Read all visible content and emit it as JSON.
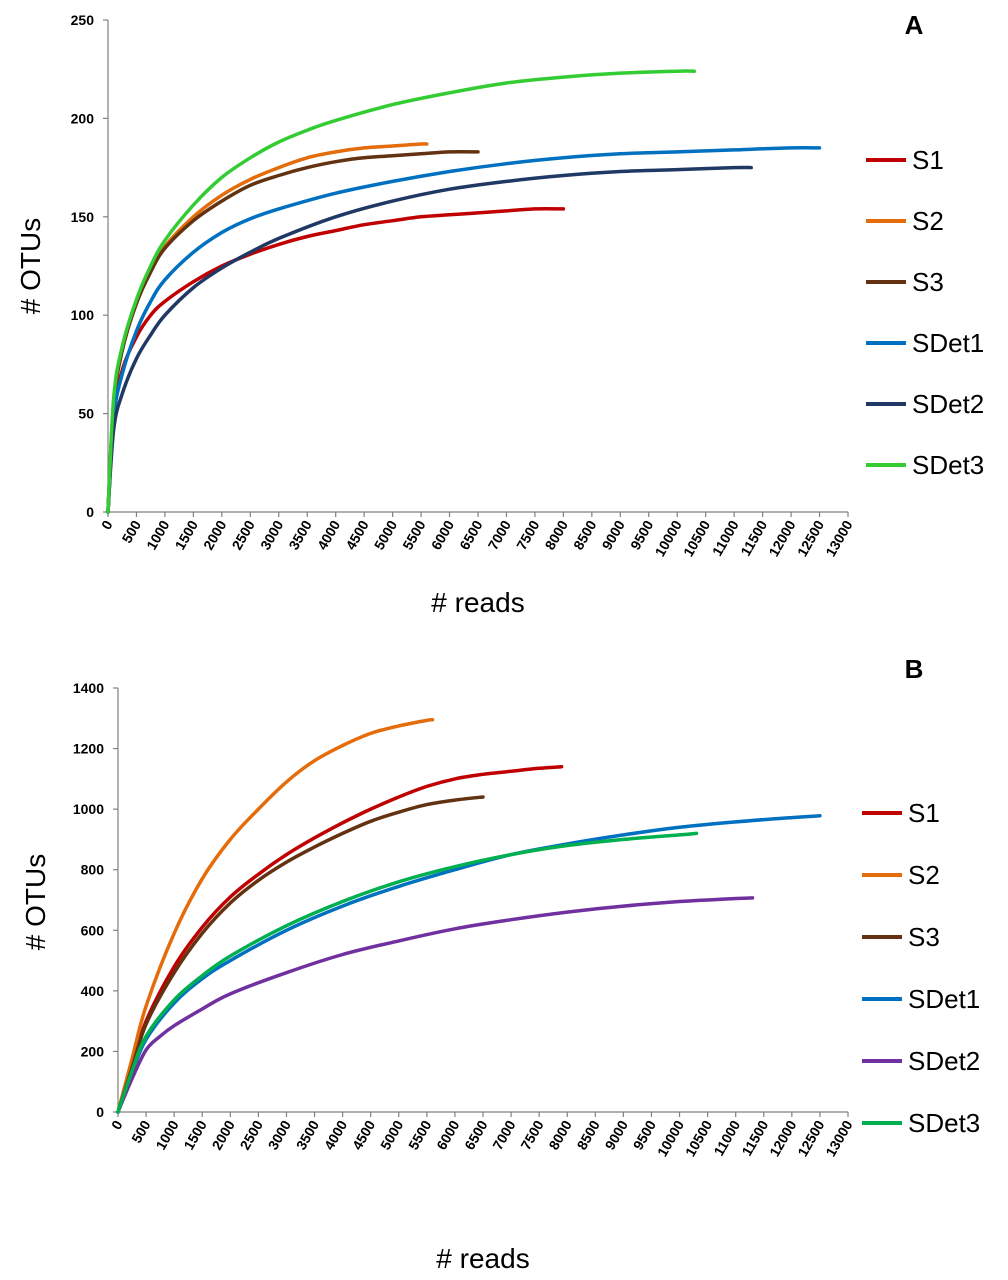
{
  "chart_data": [
    {
      "type": "line",
      "panel_label": "A",
      "xlabel": "# reads",
      "ylabel": "# OTUs",
      "xlim": [
        0,
        13000
      ],
      "ylim": [
        0,
        250
      ],
      "x_ticks": [
        0,
        500,
        1000,
        1500,
        2000,
        2500,
        3000,
        3500,
        4000,
        4500,
        5000,
        5500,
        6000,
        6500,
        7000,
        7500,
        8000,
        8500,
        9000,
        9500,
        10000,
        10500,
        11000,
        11500,
        12000,
        12500,
        13000
      ],
      "y_ticks": [
        0,
        50,
        100,
        150,
        200,
        250
      ],
      "grid": false,
      "legend_position": "right",
      "series": [
        {
          "name": "S1",
          "color": "#C00000",
          "x": [
            0,
            100,
            250,
            500,
            750,
            1000,
            1500,
            2000,
            2500,
            3000,
            3500,
            4000,
            4500,
            5000,
            5500,
            6000,
            6500,
            7000,
            7500,
            8000
          ],
          "y": [
            0,
            48,
            72,
            89,
            100,
            107,
            117,
            125,
            131,
            136,
            140,
            143,
            146,
            148,
            150,
            151,
            152,
            153,
            154,
            154
          ]
        },
        {
          "name": "S2",
          "color": "#E46C0A",
          "x": [
            0,
            100,
            250,
            500,
            750,
            1000,
            1500,
            2000,
            2500,
            3000,
            3500,
            4000,
            4500,
            5000,
            5500,
            5600
          ],
          "y": [
            0,
            55,
            82,
            107,
            123,
            135,
            150,
            161,
            169,
            175,
            180,
            183,
            185,
            186,
            187,
            187
          ]
        },
        {
          "name": "S3",
          "color": "#633210",
          "x": [
            0,
            100,
            250,
            500,
            750,
            1000,
            1500,
            2000,
            2500,
            3000,
            3500,
            4000,
            4500,
            5000,
            5500,
            6000,
            6500
          ],
          "y": [
            0,
            55,
            82,
            106,
            122,
            134,
            148,
            158,
            166,
            171,
            175,
            178,
            180,
            181,
            182,
            183,
            183
          ]
        },
        {
          "name": "SDet1",
          "color": "#0070C0",
          "x": [
            0,
            100,
            250,
            500,
            750,
            1000,
            1500,
            2000,
            2500,
            3000,
            4000,
            5000,
            6000,
            7000,
            8000,
            9000,
            10000,
            11000,
            12000,
            12500
          ],
          "y": [
            0,
            48,
            70,
            92,
            107,
            118,
            132,
            142,
            149,
            154,
            162,
            168,
            173,
            177,
            180,
            182,
            183,
            184,
            185,
            185
          ]
        },
        {
          "name": "SDet2",
          "color": "#1F3864",
          "x": [
            0,
            100,
            250,
            500,
            750,
            1000,
            1500,
            2000,
            2500,
            3000,
            4000,
            5000,
            6000,
            7000,
            8000,
            9000,
            10000,
            11000,
            11300
          ],
          "y": [
            0,
            42,
            60,
            78,
            90,
            100,
            114,
            124,
            132,
            139,
            150,
            158,
            164,
            168,
            171,
            173,
            174,
            175,
            175
          ]
        },
        {
          "name": "SDet3",
          "color": "#33CC33",
          "x": [
            0,
            100,
            250,
            500,
            750,
            1000,
            1500,
            2000,
            2500,
            3000,
            3500,
            4000,
            5000,
            6000,
            7000,
            8000,
            9000,
            10000,
            10300
          ],
          "y": [
            0,
            58,
            84,
            108,
            125,
            138,
            156,
            170,
            180,
            188,
            194,
            199,
            207,
            213,
            218,
            221,
            223,
            224,
            224
          ]
        }
      ]
    },
    {
      "type": "line",
      "panel_label": "B",
      "xlabel": "# reads",
      "ylabel": "# OTUs",
      "xlim": [
        0,
        13000
      ],
      "ylim": [
        0,
        1400
      ],
      "x_ticks": [
        0,
        500,
        1000,
        1500,
        2000,
        2500,
        3000,
        3500,
        4000,
        4500,
        5000,
        5500,
        6000,
        6500,
        7000,
        7500,
        8000,
        8500,
        9000,
        9500,
        10000,
        10500,
        11000,
        11500,
        12000,
        12500,
        13000
      ],
      "y_ticks": [
        0,
        200,
        400,
        600,
        800,
        1000,
        1200,
        1400
      ],
      "grid": false,
      "legend_position": "right",
      "series": [
        {
          "name": "S1",
          "color": "#C00000",
          "x": [
            0,
            250,
            500,
            1000,
            1500,
            2000,
            2500,
            3000,
            3500,
            4000,
            4500,
            5000,
            5500,
            6000,
            6500,
            7000,
            7500,
            7900
          ],
          "y": [
            0,
            150,
            300,
            480,
            610,
            710,
            785,
            850,
            905,
            955,
            1000,
            1040,
            1075,
            1100,
            1115,
            1125,
            1135,
            1140
          ]
        },
        {
          "name": "S2",
          "color": "#E46C0A",
          "x": [
            0,
            250,
            500,
            1000,
            1500,
            2000,
            2500,
            3000,
            3500,
            4000,
            4500,
            5000,
            5500,
            5600
          ],
          "y": [
            0,
            175,
            350,
            590,
            770,
            900,
            1000,
            1090,
            1160,
            1210,
            1250,
            1275,
            1293,
            1295
          ]
        },
        {
          "name": "S3",
          "color": "#633210",
          "x": [
            0,
            250,
            500,
            1000,
            1500,
            2000,
            2500,
            3000,
            3500,
            4000,
            4500,
            5000,
            5500,
            6000,
            6500
          ],
          "y": [
            0,
            145,
            290,
            460,
            590,
            690,
            765,
            825,
            875,
            920,
            960,
            990,
            1015,
            1030,
            1040
          ]
        },
        {
          "name": "SDet1",
          "color": "#0070C0",
          "x": [
            0,
            250,
            500,
            1000,
            1500,
            2000,
            3000,
            4000,
            5000,
            6000,
            7000,
            8000,
            9000,
            10000,
            11000,
            12000,
            12500
          ],
          "y": [
            0,
            130,
            240,
            360,
            440,
            500,
            600,
            680,
            745,
            800,
            850,
            885,
            915,
            940,
            958,
            972,
            978
          ]
        },
        {
          "name": "SDet2",
          "color": "#7030A0",
          "x": [
            0,
            250,
            500,
            750,
            1000,
            1500,
            2000,
            3000,
            4000,
            5000,
            6000,
            7000,
            8000,
            9000,
            10000,
            11000,
            11300
          ],
          "y": [
            0,
            110,
            205,
            250,
            285,
            340,
            390,
            460,
            520,
            565,
            605,
            635,
            660,
            680,
            695,
            705,
            707
          ]
        },
        {
          "name": "SDet3",
          "color": "#00B050",
          "x": [
            0,
            250,
            500,
            1000,
            1500,
            2000,
            3000,
            4000,
            5000,
            6000,
            7000,
            8000,
            9000,
            10000,
            10300
          ],
          "y": [
            0,
            135,
            250,
            370,
            450,
            515,
            615,
            695,
            760,
            810,
            850,
            880,
            900,
            915,
            920
          ]
        }
      ]
    }
  ]
}
